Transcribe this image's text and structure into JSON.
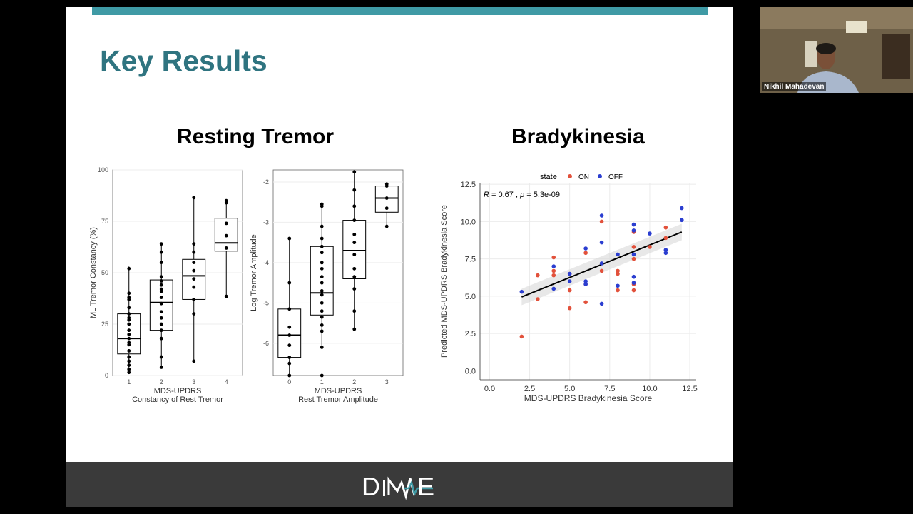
{
  "slide": {
    "title": "Key Results",
    "section_left": "Resting Tremor",
    "section_right": "Bradykinesia",
    "footer_logo": "DiME"
  },
  "video": {
    "participant_name": "Nikhil Mahadevan"
  },
  "colors": {
    "title_teal": "#2f7480",
    "top_bar": "#3f9aa5",
    "footer": "#3a3a3a",
    "on": "#e2513b",
    "off": "#2b3ed0"
  },
  "chart_data": [
    {
      "type": "box",
      "xlabel": "MDS-UPDRS\nConstancy of Rest Tremor",
      "ylabel": "ML Tremor Constancy (%)",
      "categories": [
        "1",
        "2",
        "3",
        "4"
      ],
      "ylim": [
        0,
        100
      ],
      "yticks": [
        "0",
        "25",
        "50",
        "75",
        "100"
      ],
      "boxes": [
        {
          "q1": 10.5,
          "median": 18,
          "q3": 30,
          "lo": 1.5,
          "hi": 53
        },
        {
          "q1": 22,
          "median": 35.5,
          "q3": 46.5,
          "lo": 4,
          "hi": 64
        },
        {
          "q1": 37,
          "median": 48.5,
          "q3": 56.5,
          "lo": 7,
          "hi": 86.5
        },
        {
          "q1": 60.5,
          "median": 64.5,
          "q3": 76.5,
          "lo": 38.5,
          "hi": 85.5
        }
      ],
      "points": [
        [
          1,
          52
        ],
        [
          1,
          40
        ],
        [
          1,
          37
        ],
        [
          1,
          33
        ],
        [
          1,
          30
        ],
        [
          1,
          27
        ],
        [
          1,
          25
        ],
        [
          1,
          22
        ],
        [
          1,
          20
        ],
        [
          1,
          18
        ],
        [
          1,
          15
        ],
        [
          1,
          12
        ],
        [
          1,
          9
        ],
        [
          1,
          7
        ],
        [
          1,
          5
        ],
        [
          1,
          3
        ],
        [
          1,
          1.5
        ],
        [
          1,
          38
        ],
        [
          1,
          28
        ],
        [
          1,
          16
        ],
        [
          2,
          64
        ],
        [
          2,
          60
        ],
        [
          2,
          55
        ],
        [
          2,
          48
        ],
        [
          2,
          46
        ],
        [
          2,
          44
        ],
        [
          2,
          41
        ],
        [
          2,
          38
        ],
        [
          2,
          35
        ],
        [
          2,
          31
        ],
        [
          2,
          28
        ],
        [
          2,
          25
        ],
        [
          2,
          22
        ],
        [
          2,
          18
        ],
        [
          2,
          9
        ],
        [
          2,
          4
        ],
        [
          2,
          42
        ],
        [
          3,
          86.5
        ],
        [
          3,
          64
        ],
        [
          3,
          60
        ],
        [
          3,
          55
        ],
        [
          3,
          51
        ],
        [
          3,
          47
        ],
        [
          3,
          43
        ],
        [
          3,
          37
        ],
        [
          3,
          30
        ],
        [
          3,
          7
        ],
        [
          4,
          85
        ],
        [
          4,
          84
        ],
        [
          4,
          74
        ],
        [
          4,
          68
        ],
        [
          4,
          62
        ],
        [
          4,
          38.5
        ]
      ]
    },
    {
      "type": "box",
      "xlabel": "MDS-UPDRS\nRest Tremor Amplitude",
      "ylabel": "Log Tremor Amplitude",
      "categories": [
        "0",
        "1",
        "2",
        "3"
      ],
      "ylim": [
        -6.8,
        -1.7
      ],
      "yticks": [
        "-6",
        "-5",
        "-4",
        "-3",
        "-2"
      ],
      "boxes": [
        {
          "q1": -6.35,
          "median": -5.8,
          "q3": -5.15,
          "lo": -6.8,
          "hi": -3.4
        },
        {
          "q1": -5.3,
          "median": -4.75,
          "q3": -3.6,
          "lo": -6.1,
          "hi": -2.55
        },
        {
          "q1": -4.4,
          "median": -3.7,
          "q3": -2.95,
          "lo": -5.65,
          "hi": -1.75
        },
        {
          "q1": -2.75,
          "median": -2.4,
          "q3": -2.1,
          "lo": -3.1,
          "hi": -2.05
        }
      ],
      "points": [
        [
          0,
          -3.4
        ],
        [
          0,
          -4.5
        ],
        [
          0,
          -5.15
        ],
        [
          0,
          -5.6
        ],
        [
          0,
          -5.8
        ],
        [
          0,
          -6.05
        ],
        [
          0,
          -6.35
        ],
        [
          0,
          -6.5
        ],
        [
          0,
          -6.8
        ],
        [
          1,
          -2.55
        ],
        [
          1,
          -2.6
        ],
        [
          1,
          -3.1
        ],
        [
          1,
          -3.4
        ],
        [
          1,
          -3.6
        ],
        [
          1,
          -3.75
        ],
        [
          1,
          -4.0
        ],
        [
          1,
          -4.15
        ],
        [
          1,
          -4.35
        ],
        [
          1,
          -4.5
        ],
        [
          1,
          -4.7
        ],
        [
          1,
          -4.8
        ],
        [
          1,
          -5.0
        ],
        [
          1,
          -5.2
        ],
        [
          1,
          -5.35
        ],
        [
          1,
          -5.55
        ],
        [
          1,
          -5.7
        ],
        [
          1,
          -6.1
        ],
        [
          1,
          -6.8
        ],
        [
          2,
          -1.75
        ],
        [
          2,
          -2.2
        ],
        [
          2,
          -2.6
        ],
        [
          2,
          -2.95
        ],
        [
          2,
          -3.3
        ],
        [
          2,
          -3.5
        ],
        [
          2,
          -3.8
        ],
        [
          2,
          -4.15
        ],
        [
          2,
          -4.35
        ],
        [
          2,
          -4.65
        ],
        [
          2,
          -5.2
        ],
        [
          2,
          -5.65
        ],
        [
          3,
          -2.05
        ],
        [
          3,
          -2.1
        ],
        [
          3,
          -2.4
        ],
        [
          3,
          -2.65
        ],
        [
          3,
          -3.1
        ]
      ]
    },
    {
      "type": "scatter",
      "xlabel": "MDS-UPDRS Bradykinesia Score",
      "ylabel": "Predicted MDS-UPDRS Bradykinesia Score",
      "xlim": [
        -0.6,
        12.9
      ],
      "ylim": [
        -0.6,
        12.6
      ],
      "xticks": [
        "0.0",
        "2.5",
        "5.0",
        "7.5",
        "10.0",
        "12.5"
      ],
      "yticks": [
        "0.0",
        "2.5",
        "5.0",
        "7.5",
        "10.0",
        "12.5"
      ],
      "legend_title": "state",
      "legend_position": "top",
      "annotation": {
        "r": "0.67",
        "p": "5.3e-09"
      },
      "regression": {
        "x": [
          2,
          12
        ],
        "y": [
          4.95,
          9.3
        ]
      },
      "series": [
        {
          "name": "ON",
          "color": "#e2513b",
          "points": [
            [
              2,
              2.3
            ],
            [
              3,
              6.4
            ],
            [
              3,
              4.8
            ],
            [
              4,
              7.6
            ],
            [
              4,
              6.7
            ],
            [
              4,
              6.4
            ],
            [
              5,
              6.5
            ],
            [
              5,
              5.4
            ],
            [
              5,
              4.2
            ],
            [
              6,
              7.9
            ],
            [
              6,
              5.8
            ],
            [
              6,
              4.6
            ],
            [
              7,
              10
            ],
            [
              7,
              6.7
            ],
            [
              8,
              6.7
            ],
            [
              8,
              6.5
            ],
            [
              8,
              5.4
            ],
            [
              9,
              9.3
            ],
            [
              9,
              8.3
            ],
            [
              9,
              7.5
            ],
            [
              9,
              5.4
            ],
            [
              9,
              5.8
            ],
            [
              10,
              8.3
            ],
            [
              11,
              9.6
            ],
            [
              11,
              8.9
            ]
          ]
        },
        {
          "name": "OFF",
          "color": "#2b3ed0",
          "points": [
            [
              2,
              5.3
            ],
            [
              4,
              7
            ],
            [
              4,
              5.5
            ],
            [
              5,
              6.5
            ],
            [
              5,
              6
            ],
            [
              6,
              8.2
            ],
            [
              6,
              6
            ],
            [
              6,
              5.8
            ],
            [
              7,
              10.4
            ],
            [
              7,
              8.6
            ],
            [
              7,
              7.2
            ],
            [
              7,
              4.5
            ],
            [
              8,
              7.8
            ],
            [
              8,
              5.7
            ],
            [
              9,
              9.8
            ],
            [
              9,
              9.4
            ],
            [
              9,
              7.8
            ],
            [
              9,
              6.3
            ],
            [
              9,
              5.9
            ],
            [
              10,
              9.2
            ],
            [
              11,
              8.1
            ],
            [
              11,
              7.9
            ],
            [
              12,
              10.9
            ],
            [
              12,
              10.1
            ]
          ]
        }
      ]
    }
  ]
}
